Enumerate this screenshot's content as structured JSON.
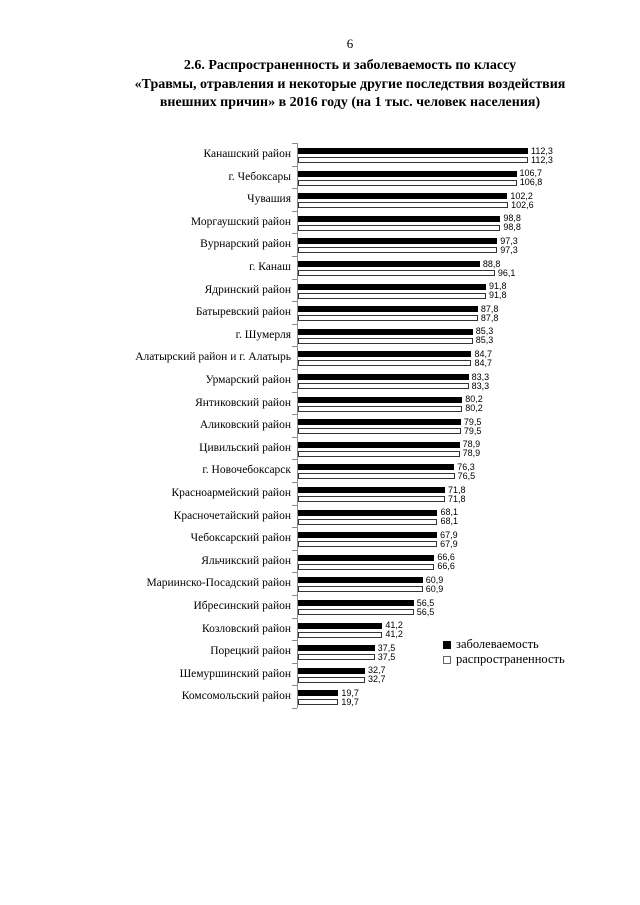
{
  "page": {
    "number": "6"
  },
  "title": {
    "line1": "2.6. Распространенность и заболеваемость по классу",
    "line2": "«Травмы, отравления и некоторые другие последствия воздействия",
    "line3": "внешних причин» в 2016 году (на 1 тыс. человек населения)"
  },
  "legend": {
    "items": [
      {
        "label": "заболеваемость",
        "swatch": "black",
        "color": "#000000"
      },
      {
        "label": "распространенность",
        "swatch": "white",
        "color": "#ffffff"
      }
    ]
  },
  "chart_data": {
    "type": "bar",
    "orientation": "horizontal",
    "title": "2.6. Распространенность и заболеваемость по классу «Травмы, отравления и некоторые другие последствия воздействия внешних причин» в 2016 году (на 1 тыс. человек населения)",
    "unit": "на 1 тыс. человек населения",
    "decimal_separator": ",",
    "grid": false,
    "legend_position": "bottom-right",
    "value_axis_range": [
      0,
      112.3
    ],
    "categories": [
      "Канашский район",
      "г. Чебоксары",
      "Чувашия",
      "Моргаушский район",
      "Вурнарский район",
      "г. Канаш",
      "Ядринский район",
      "Батыревский район",
      "г. Шумерля",
      "Алатырский район и г. Алатырь",
      "Урмарский район",
      "Янтиковский район",
      "Аликовский район",
      "Цивильский район",
      "г. Новочебоксарск",
      "Красноармейский район",
      "Красночетайский район",
      "Чебоксарский район",
      "Яльчикский район",
      "Мариинско-Посадский район",
      "Ибресинский район",
      "Козловский район",
      "Порецкий район",
      "Шемуршинский район",
      "Комсомольский район"
    ],
    "series": [
      {
        "name": "заболеваемость",
        "color": "#000000",
        "values": [
          112.3,
          106.7,
          102.2,
          98.8,
          97.3,
          88.8,
          91.8,
          87.8,
          85.3,
          84.7,
          83.3,
          80.2,
          79.5,
          78.9,
          76.3,
          71.8,
          68.1,
          67.9,
          66.6,
          60.9,
          56.5,
          41.2,
          37.5,
          32.7,
          19.7
        ]
      },
      {
        "name": "распространенность",
        "color": "#ffffff",
        "values": [
          112.3,
          106.8,
          102.6,
          98.8,
          97.3,
          96.1,
          91.8,
          87.8,
          85.3,
          84.7,
          83.3,
          80.2,
          79.5,
          78.9,
          76.5,
          71.8,
          68.1,
          67.9,
          66.6,
          60.9,
          56.5,
          41.2,
          37.5,
          32.7,
          19.7
        ]
      }
    ]
  }
}
